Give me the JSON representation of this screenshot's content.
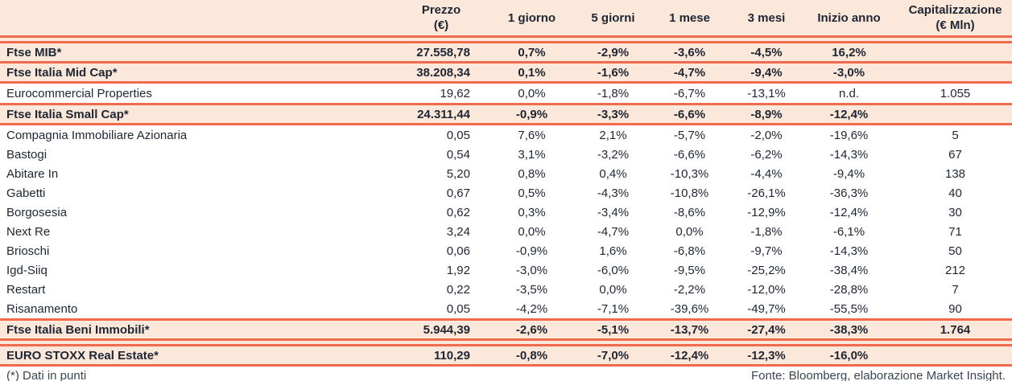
{
  "colors": {
    "accent_line": "#f2694b",
    "row_highlight": "#fbe8da",
    "text": "#1e2633",
    "footer_text": "#3a4653",
    "background": "#ffffff"
  },
  "table": {
    "columns": [
      {
        "id": "name",
        "label": ""
      },
      {
        "id": "prezzo",
        "label": "Prezzo\n(€)"
      },
      {
        "id": "g1",
        "label": "1 giorno"
      },
      {
        "id": "g5",
        "label": "5 giorni"
      },
      {
        "id": "m1",
        "label": "1 mese"
      },
      {
        "id": "m3",
        "label": "3 mesi"
      },
      {
        "id": "ytd",
        "label": "Inizio anno"
      },
      {
        "id": "cap",
        "label": "Capitalizzazione\n(€ Mln)"
      }
    ],
    "header_separator": "double",
    "rows": [
      {
        "name": "Ftse MIB*",
        "type": "index",
        "sep": "single",
        "values": [
          "27.558,78",
          "0,7%",
          "-2,9%",
          "-3,6%",
          "-4,5%",
          "16,2%",
          ""
        ]
      },
      {
        "name": "Ftse Italia Mid Cap*",
        "type": "index",
        "sep": "single",
        "values": [
          "38.208,34",
          "0,1%",
          "-1,6%",
          "-4,7%",
          "-9,4%",
          "-3,0%",
          ""
        ]
      },
      {
        "name": "Eurocommercial Properties",
        "type": "stock",
        "sep": "single",
        "values": [
          "19,62",
          "0,0%",
          "-1,8%",
          "-6,7%",
          "-13,1%",
          "n.d.",
          "1.055"
        ]
      },
      {
        "name": "Ftse Italia Small Cap*",
        "type": "index",
        "sep": "single",
        "values": [
          "24.311,44",
          "-0,9%",
          "-3,3%",
          "-6,6%",
          "-8,9%",
          "-12,4%",
          ""
        ]
      },
      {
        "name": "Compagnia Immobiliare Azionaria",
        "type": "stock",
        "sep": "none",
        "values": [
          "0,05",
          "7,6%",
          "2,1%",
          "-5,7%",
          "-2,0%",
          "-19,6%",
          "5"
        ]
      },
      {
        "name": "Bastogi",
        "type": "stock",
        "sep": "none",
        "values": [
          "0,54",
          "3,1%",
          "-3,2%",
          "-6,6%",
          "-6,2%",
          "-14,3%",
          "67"
        ]
      },
      {
        "name": "Abitare In",
        "type": "stock",
        "sep": "none",
        "values": [
          "5,20",
          "0,8%",
          "0,4%",
          "-10,3%",
          "-4,4%",
          "-9,4%",
          "138"
        ]
      },
      {
        "name": "Gabetti",
        "type": "stock",
        "sep": "none",
        "values": [
          "0,67",
          "0,5%",
          "-4,3%",
          "-10,8%",
          "-26,1%",
          "-36,3%",
          "40"
        ]
      },
      {
        "name": "Borgosesia",
        "type": "stock",
        "sep": "none",
        "values": [
          "0,62",
          "0,3%",
          "-3,4%",
          "-8,6%",
          "-12,9%",
          "-12,4%",
          "30"
        ]
      },
      {
        "name": "Next Re",
        "type": "stock",
        "sep": "none",
        "values": [
          "3,24",
          "0,0%",
          "-4,7%",
          "0,0%",
          "-1,8%",
          "-6,1%",
          "71"
        ]
      },
      {
        "name": "Brioschi",
        "type": "stock",
        "sep": "none",
        "values": [
          "0,06",
          "-0,9%",
          "1,6%",
          "-6,8%",
          "-9,7%",
          "-14,3%",
          "50"
        ]
      },
      {
        "name": "Igd-Siiq",
        "type": "stock",
        "sep": "none",
        "values": [
          "1,92",
          "-3,0%",
          "-6,0%",
          "-9,5%",
          "-25,2%",
          "-38,4%",
          "212"
        ]
      },
      {
        "name": "Restart",
        "type": "stock",
        "sep": "none",
        "values": [
          "0,22",
          "-3,5%",
          "0,0%",
          "-2,2%",
          "-12,0%",
          "-28,8%",
          "7"
        ]
      },
      {
        "name": "Risanamento",
        "type": "stock",
        "sep": "single",
        "values": [
          "0,05",
          "-4,2%",
          "-7,1%",
          "-39,6%",
          "-49,7%",
          "-55,5%",
          "90"
        ]
      },
      {
        "name": "Ftse Italia Beni Immobili*",
        "type": "index",
        "sep": "double",
        "values": [
          "5.944,39",
          "-2,6%",
          "-5,1%",
          "-13,7%",
          "-27,4%",
          "-38,3%",
          "1.764"
        ]
      },
      {
        "name": "EURO STOXX Real Estate*",
        "type": "index",
        "sep": "single",
        "values": [
          "110,29",
          "-0,8%",
          "-7,0%",
          "-12,4%",
          "-12,3%",
          "-16,0%",
          ""
        ]
      }
    ]
  },
  "footer": {
    "note": "(*) Dati in punti",
    "source": "Fonte: Bloomberg, elaborazione Market Insight."
  }
}
